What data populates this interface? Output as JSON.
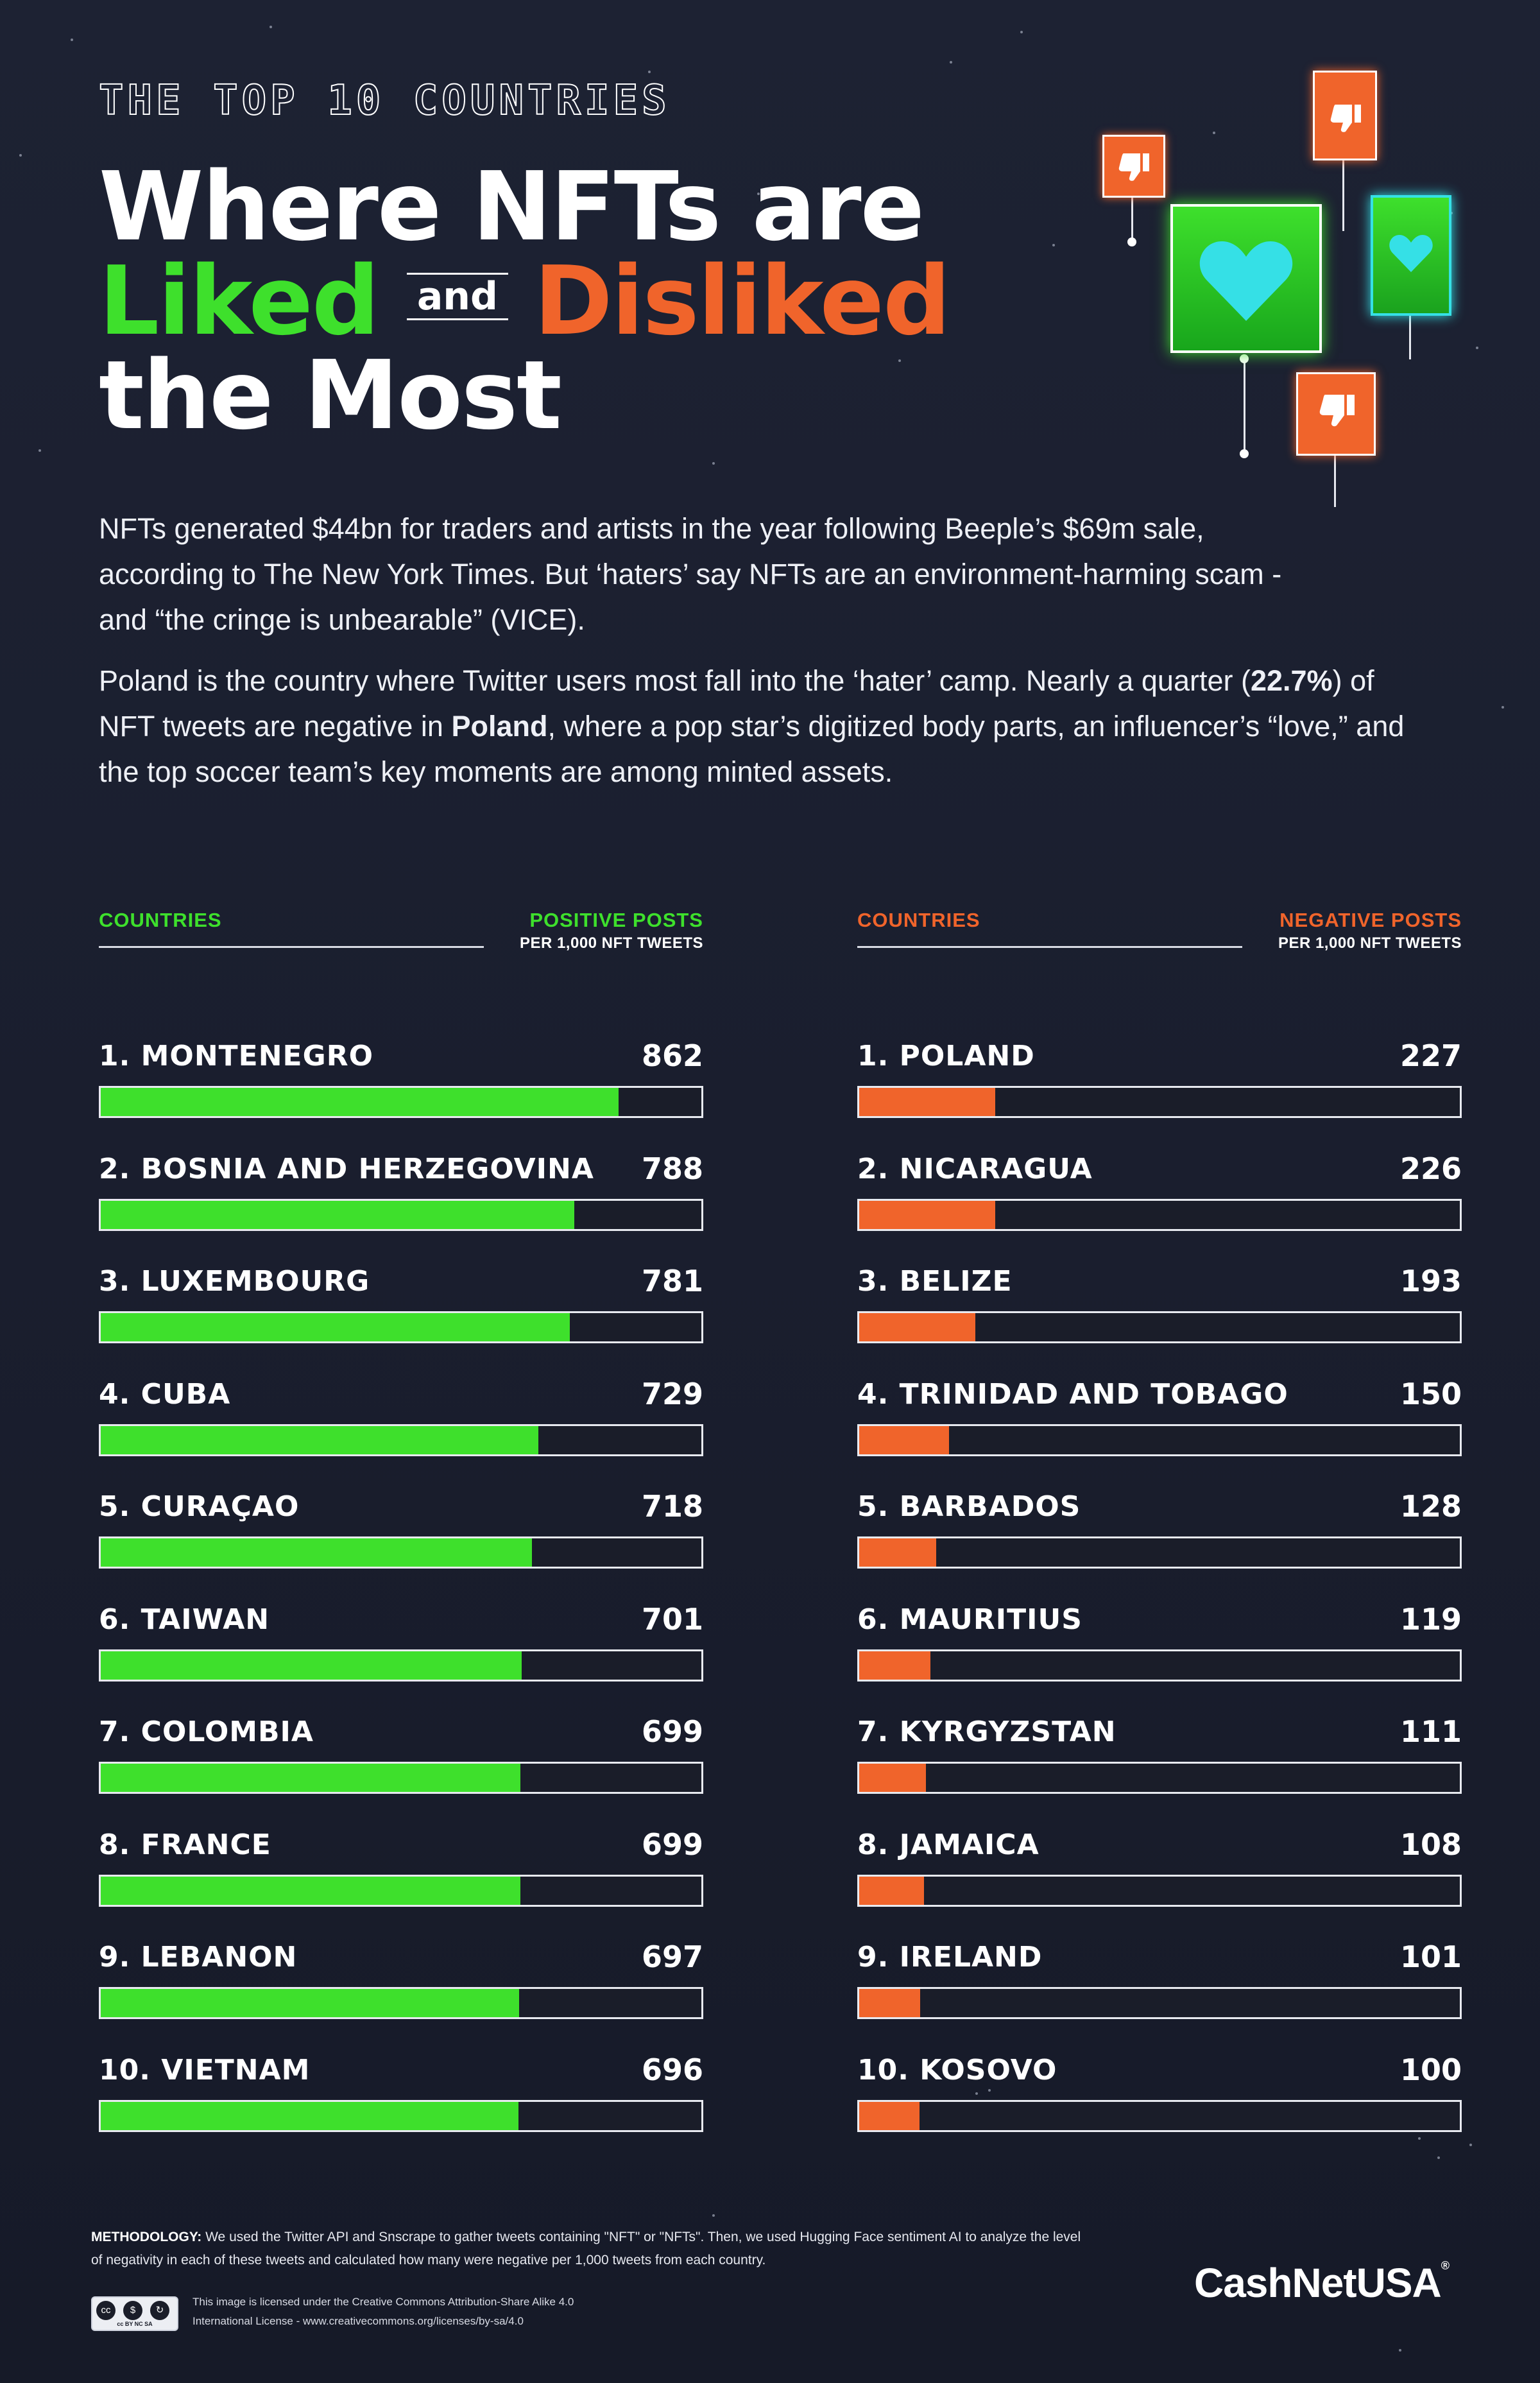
{
  "header": {
    "kicker": "THE TOP 10 COUNTRIES",
    "line1": "Where NFTs are",
    "liked": "Liked",
    "and": "and",
    "disliked": "Disliked",
    "line3": "the Most"
  },
  "intro": {
    "p1": "NFTs generated $44bn for traders and artists in the year following Beeple’s $69m sale, according to The New York Times. But ‘haters’ say NFTs are an environment-harming scam - and “the cringe is unbearable” (VICE).",
    "p2_a": "Poland is the country where Twitter users most fall into the ‘hater’ camp. Nearly a quarter (",
    "p2_pct": "22.7%",
    "p2_b": ") of NFT tweets are negative in ",
    "p2_country": "Poland",
    "p2_c": ", where a pop star’s digitized body parts, an influencer’s “love,” and the top soccer team’s key moments are among minted assets."
  },
  "colors": {
    "positive": "#3ee02c",
    "negative": "#f0642b",
    "background": "#1d2233"
  },
  "icons": [
    "thumbs-down-icon",
    "heart-icon"
  ],
  "chart_data": [
    {
      "type": "bar",
      "title": "Positive posts per 1,000 NFT tweets",
      "category_label": "COUNTRIES",
      "metric_label": "POSITIVE POSTS",
      "metric_sub": "PER 1,000 NFT TWEETS",
      "xlim": [
        0,
        1000
      ],
      "categories": [
        "1. MONTENEGRO",
        "2. BOSNIA AND HERZEGOVINA",
        "3. LUXEMBOURG",
        "4. CUBA",
        "5. CURAÇAO",
        "6. TAIWAN",
        "7. COLOMBIA",
        "8. FRANCE",
        "9. LEBANON",
        "10. VIETNAM"
      ],
      "values": [
        862,
        788,
        781,
        729,
        718,
        701,
        699,
        699,
        697,
        696
      ]
    },
    {
      "type": "bar",
      "title": "Negative posts per 1,000 NFT tweets",
      "category_label": "COUNTRIES",
      "metric_label": "NEGATIVE POSTS",
      "metric_sub": "PER 1,000 NFT TWEETS",
      "xlim": [
        0,
        1000
      ],
      "categories": [
        "1. POLAND",
        "2. NICARAGUA",
        "3. BELIZE",
        "4. TRINIDAD AND TOBAGO",
        "5. BARBADOS",
        "6. MAURITIUS",
        "7. KYRGYZSTAN",
        "8. JAMAICA",
        "9. IRELAND",
        "10. KOSOVO"
      ],
      "values": [
        227,
        226,
        193,
        150,
        128,
        119,
        111,
        108,
        101,
        100
      ]
    }
  ],
  "footer": {
    "method_label": "METHODOLOGY:",
    "method_text": "We used the Twitter API and Snscrape to gather tweets containing \"NFT\" or \"NFTs\". Then, we used Hugging Face sentiment AI to analyze the level of negativity in each of these tweets and calculated how many were negative per 1,000 tweets from each country.",
    "license_line1": "This image is licensed under the Creative Commons Attribution-Share Alike 4.0",
    "license_line2": "International License - www.creativecommons.org/licenses/by-sa/4.0",
    "cc_badge": "cc BY NC SA",
    "brand": "CashNetUSA"
  }
}
